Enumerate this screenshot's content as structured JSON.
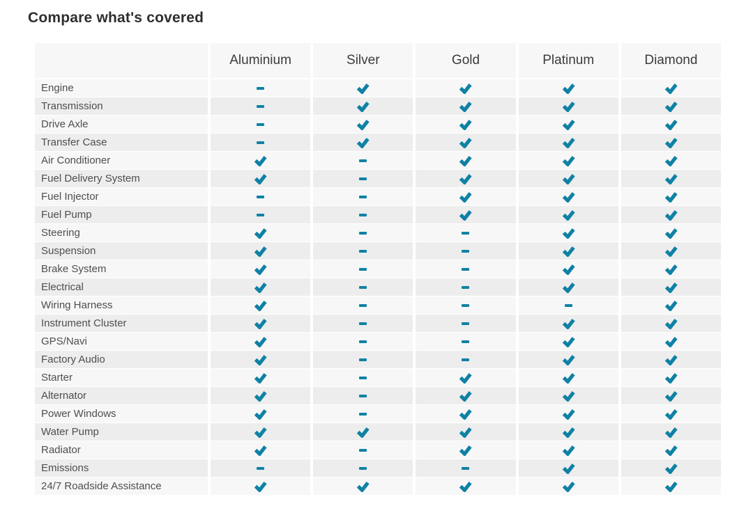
{
  "title": "Compare what's covered",
  "colors": {
    "accent": "#0f81a5",
    "row_light": "#f7f7f7",
    "row_dark": "#ededed",
    "header_bg": "#f7f7f7"
  },
  "icons": {
    "covered": "check-icon",
    "not_covered": "dash-icon"
  },
  "table": {
    "plans": [
      "Aluminium",
      "Silver",
      "Gold",
      "Platinum",
      "Diamond"
    ],
    "rows": [
      {
        "label": "Engine",
        "coverage": [
          "dash",
          "check",
          "check",
          "check",
          "check"
        ]
      },
      {
        "label": "Transmission",
        "coverage": [
          "dash",
          "check",
          "check",
          "check",
          "check"
        ]
      },
      {
        "label": "Drive Axle",
        "coverage": [
          "dash",
          "check",
          "check",
          "check",
          "check"
        ]
      },
      {
        "label": "Transfer Case",
        "coverage": [
          "dash",
          "check",
          "check",
          "check",
          "check"
        ]
      },
      {
        "label": "Air Conditioner",
        "coverage": [
          "check",
          "dash",
          "check",
          "check",
          "check"
        ]
      },
      {
        "label": "Fuel Delivery System",
        "coverage": [
          "check",
          "dash",
          "check",
          "check",
          "check"
        ]
      },
      {
        "label": "Fuel Injector",
        "coverage": [
          "dash",
          "dash",
          "check",
          "check",
          "check"
        ]
      },
      {
        "label": "Fuel Pump",
        "coverage": [
          "dash",
          "dash",
          "check",
          "check",
          "check"
        ]
      },
      {
        "label": "Steering",
        "coverage": [
          "check",
          "dash",
          "dash",
          "check",
          "check"
        ]
      },
      {
        "label": "Suspension",
        "coverage": [
          "check",
          "dash",
          "dash",
          "check",
          "check"
        ]
      },
      {
        "label": "Brake System",
        "coverage": [
          "check",
          "dash",
          "dash",
          "check",
          "check"
        ]
      },
      {
        "label": "Electrical",
        "coverage": [
          "check",
          "dash",
          "dash",
          "check",
          "check"
        ]
      },
      {
        "label": "Wiring Harness",
        "coverage": [
          "check",
          "dash",
          "dash",
          "dash",
          "check"
        ]
      },
      {
        "label": "Instrument Cluster",
        "coverage": [
          "check",
          "dash",
          "dash",
          "check",
          "check"
        ]
      },
      {
        "label": "GPS/Navi",
        "coverage": [
          "check",
          "dash",
          "dash",
          "check",
          "check"
        ]
      },
      {
        "label": "Factory Audio",
        "coverage": [
          "check",
          "dash",
          "dash",
          "check",
          "check"
        ]
      },
      {
        "label": "Starter",
        "coverage": [
          "check",
          "dash",
          "check",
          "check",
          "check"
        ]
      },
      {
        "label": "Alternator",
        "coverage": [
          "check",
          "dash",
          "check",
          "check",
          "check"
        ]
      },
      {
        "label": "Power Windows",
        "coverage": [
          "check",
          "dash",
          "check",
          "check",
          "check"
        ]
      },
      {
        "label": "Water Pump",
        "coverage": [
          "check",
          "check",
          "check",
          "check",
          "check"
        ]
      },
      {
        "label": "Radiator",
        "coverage": [
          "check",
          "dash",
          "check",
          "check",
          "check"
        ]
      },
      {
        "label": "Emissions",
        "coverage": [
          "dash",
          "dash",
          "dash",
          "check",
          "check"
        ]
      },
      {
        "label": "24/7 Roadside Assistance",
        "coverage": [
          "check",
          "check",
          "check",
          "check",
          "check"
        ]
      }
    ]
  }
}
